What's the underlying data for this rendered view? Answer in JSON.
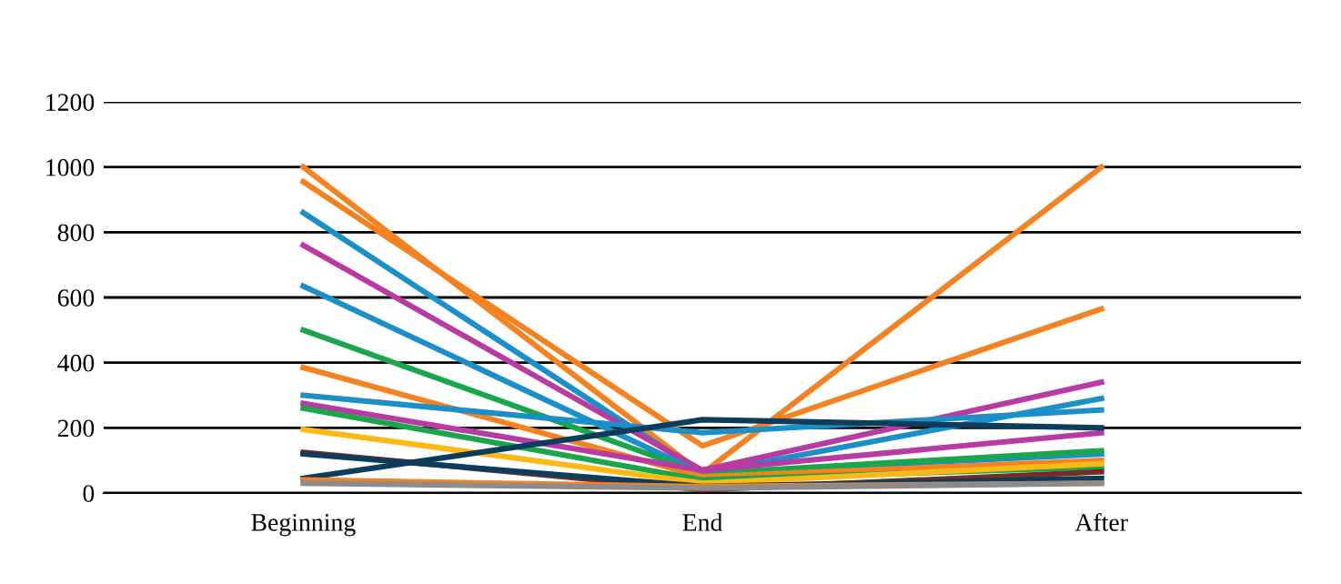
{
  "chart_data": {
    "type": "line",
    "categories": [
      "Beginning",
      "End",
      "After"
    ],
    "ylim": [
      0,
      1200
    ],
    "yticks": [
      0,
      200,
      400,
      600,
      800,
      1000,
      1200
    ],
    "grid": "y",
    "marker": "none",
    "line_style": "solid",
    "series": [
      {
        "color": "#f58220",
        "values": [
          1000,
          60,
          1000
        ]
      },
      {
        "color": "#f58220",
        "values": [
          955,
          145,
          565
        ]
      },
      {
        "color": "#1b8fc8",
        "values": [
          860,
          60,
          290
        ]
      },
      {
        "color": "#b83ba4",
        "values": [
          760,
          70,
          340
        ]
      },
      {
        "color": "#1b8fc8",
        "values": [
          635,
          60,
          120
        ]
      },
      {
        "color": "#1aa64a",
        "values": [
          500,
          60,
          130
        ]
      },
      {
        "color": "#f58220",
        "values": [
          385,
          50,
          100
        ]
      },
      {
        "color": "#1b8fc8",
        "values": [
          300,
          185,
          255
        ]
      },
      {
        "color": "#b83ba4",
        "values": [
          275,
          70,
          185
        ]
      },
      {
        "color": "#1aa64a",
        "values": [
          260,
          40,
          80
        ]
      },
      {
        "color": "#fdb913",
        "values": [
          195,
          30,
          90
        ]
      },
      {
        "color": "#772c2a",
        "values": [
          125,
          10,
          65
        ]
      },
      {
        "color": "#0e3d5c",
        "values": [
          120,
          20,
          45
        ]
      },
      {
        "color": "#0e3d5c",
        "values": [
          45,
          225,
          200
        ]
      },
      {
        "color": "#f58220",
        "values": [
          40,
          20,
          30
        ]
      },
      {
        "color": "#8c8c8c",
        "values": [
          30,
          15,
          30
        ]
      }
    ]
  }
}
